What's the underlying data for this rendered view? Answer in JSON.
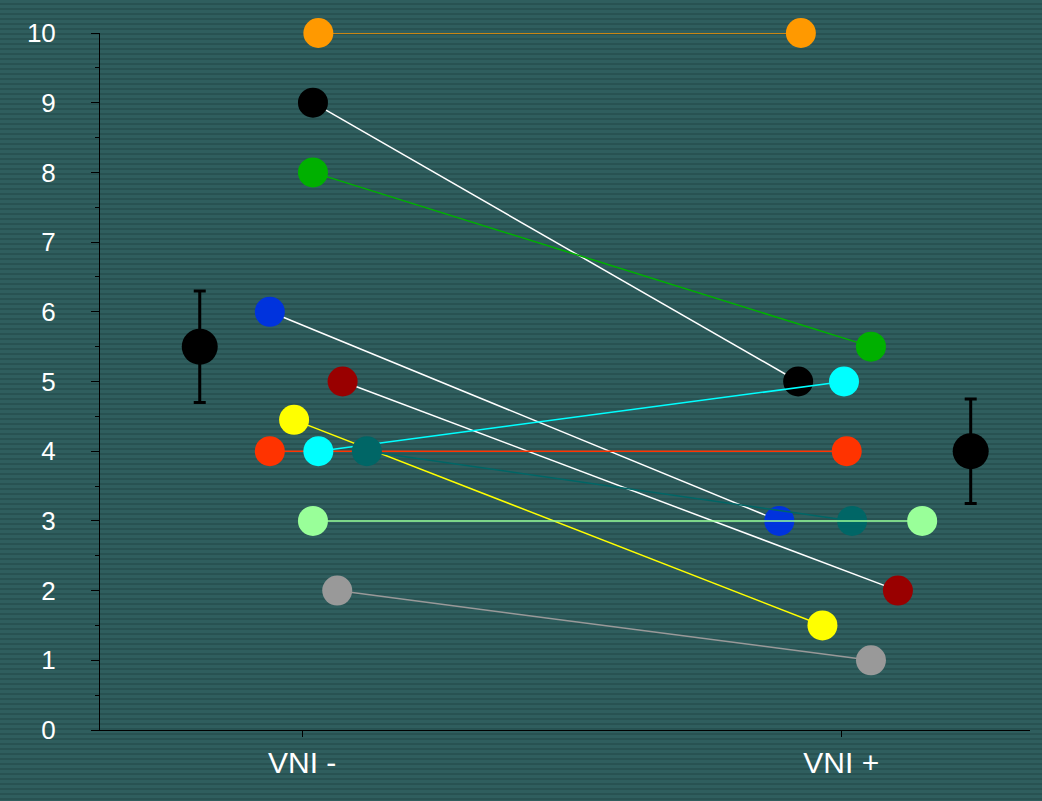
{
  "chart_data": {
    "type": "scatter",
    "xlim": [
      0.25,
      3.7
    ],
    "xticks": [
      {
        "value": 1,
        "label": "VNI -"
      },
      {
        "value": 3,
        "label": "VNI +"
      }
    ],
    "ylim": [
      0,
      10
    ],
    "yticks": [
      0,
      1,
      2,
      3,
      4,
      5,
      6,
      7,
      8,
      9,
      10
    ],
    "grid": false,
    "tick_labels": true,
    "series": [
      {
        "color": "#ff9900",
        "marker": "circle",
        "line_style": "solid",
        "x": [
          1.06,
          2.85
        ],
        "values": [
          10,
          10
        ]
      },
      {
        "color": "#000000",
        "marker": "circle",
        "line_style": "solid",
        "x": [
          1.04,
          2.84
        ],
        "values": [
          9,
          5
        ]
      },
      {
        "color": "#00b000",
        "marker": "circle",
        "line_style": "solid",
        "x": [
          1.04,
          3.11
        ],
        "values": [
          8,
          5.5
        ]
      },
      {
        "color": "#0033dd",
        "marker": "circle",
        "line_style": "solid",
        "x": [
          0.88,
          2.77
        ],
        "values": [
          6,
          3
        ]
      },
      {
        "color": "#990000",
        "marker": "circle",
        "line_style": "solid",
        "x": [
          1.15,
          3.21
        ],
        "values": [
          5,
          2
        ]
      },
      {
        "color": "#ffff00",
        "marker": "circle",
        "line_style": "solid",
        "x": [
          0.97,
          2.93
        ],
        "values": [
          4.45,
          1.5
        ]
      },
      {
        "color": "#ff3300",
        "marker": "circle",
        "line_style": "solid",
        "x": [
          0.88,
          3.02
        ],
        "values": [
          4,
          4
        ]
      },
      {
        "color": "#00ffff",
        "marker": "circle",
        "line_style": "solid",
        "x": [
          1.06,
          3.01
        ],
        "values": [
          4,
          5
        ]
      },
      {
        "color": "#006666",
        "marker": "circle",
        "line_style": "solid",
        "x": [
          1.24,
          3.04
        ],
        "values": [
          4,
          3
        ]
      },
      {
        "color": "#99ff99",
        "marker": "circle",
        "line_style": "solid",
        "x": [
          1.04,
          3.3
        ],
        "values": [
          3,
          3
        ]
      },
      {
        "color": "#999999",
        "marker": "circle",
        "line_style": "solid",
        "x": [
          1.13,
          3.11
        ],
        "values": [
          2,
          1
        ]
      },
      {
        "color": "#000000",
        "marker": "circle",
        "line_style": "none",
        "x": [
          0.62,
          3.48
        ],
        "values": [
          5.5,
          4
        ],
        "error": [
          0.8,
          0.75
        ]
      }
    ]
  }
}
